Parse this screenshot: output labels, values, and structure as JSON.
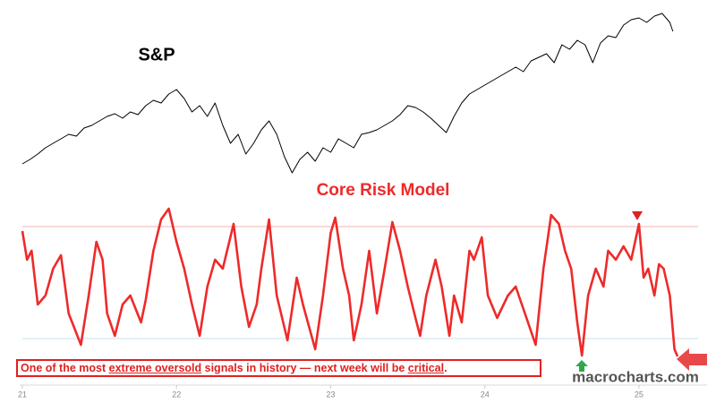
{
  "chart_data": [
    {
      "type": "line",
      "title": "S&P",
      "color": "#000000",
      "x": [
        21.0,
        21.05,
        21.1,
        21.15,
        21.2,
        21.25,
        21.3,
        21.35,
        21.4,
        21.45,
        21.5,
        21.55,
        21.6,
        21.65,
        21.7,
        21.75,
        21.8,
        21.85,
        21.9,
        21.95,
        22.0,
        22.05,
        22.1,
        22.15,
        22.2,
        22.25,
        22.3,
        22.35,
        22.4,
        22.45,
        22.5,
        22.55,
        22.6,
        22.65,
        22.7,
        22.75,
        22.8,
        22.85,
        22.9,
        22.95,
        23.0,
        23.05,
        23.1,
        23.15,
        23.2,
        23.25,
        23.3,
        23.4,
        23.45,
        23.5,
        23.55,
        23.6,
        23.65,
        23.7,
        23.75,
        23.8,
        23.85,
        23.9,
        23.95,
        24.0,
        24.1,
        24.2,
        24.25,
        24.3,
        24.4,
        24.45,
        24.5,
        24.55,
        24.6,
        24.65,
        24.7,
        24.75,
        24.8,
        24.85,
        24.9,
        24.95,
        25.0,
        25.05,
        25.1,
        25.15,
        25.2,
        25.22
      ],
      "values": [
        17,
        22,
        28,
        35,
        40,
        45,
        50,
        48,
        57,
        60,
        65,
        70,
        73,
        68,
        75,
        72,
        82,
        88,
        85,
        95,
        100,
        90,
        75,
        82,
        70,
        85,
        60,
        40,
        50,
        28,
        40,
        55,
        65,
        50,
        25,
        7,
        22,
        30,
        20,
        35,
        30,
        45,
        40,
        35,
        50,
        52,
        55,
        65,
        72,
        82,
        80,
        75,
        68,
        60,
        52,
        70,
        85,
        95,
        100,
        105,
        115,
        125,
        120,
        132,
        140,
        130,
        150,
        145,
        155,
        150,
        130,
        152,
        160,
        158,
        172,
        178,
        180,
        175,
        182,
        185,
        175,
        165
      ],
      "xlim": [
        21,
        25.43
      ],
      "ylim": [
        0,
        190
      ]
    },
    {
      "type": "line",
      "title": "Core Risk Model",
      "color": "#ee2a2a",
      "x": [
        21.0,
        21.03,
        21.06,
        21.1,
        21.15,
        21.2,
        21.25,
        21.3,
        21.38,
        21.43,
        21.48,
        21.52,
        21.55,
        21.6,
        21.65,
        21.7,
        21.77,
        21.8,
        21.85,
        21.9,
        21.95,
        22.0,
        22.05,
        22.1,
        22.15,
        22.2,
        22.25,
        22.3,
        22.37,
        22.42,
        22.47,
        22.52,
        22.55,
        22.6,
        22.65,
        22.72,
        22.78,
        22.82,
        22.9,
        22.95,
        23.0,
        23.03,
        23.08,
        23.12,
        23.15,
        23.2,
        23.25,
        23.3,
        23.35,
        23.4,
        23.45,
        23.5,
        23.55,
        23.58,
        23.62,
        23.68,
        23.72,
        23.77,
        23.8,
        23.85,
        23.9,
        23.93,
        23.98,
        24.02,
        24.08,
        24.15,
        24.2,
        24.25,
        24.33,
        24.38,
        24.43,
        24.48,
        24.52,
        24.56,
        24.6,
        24.63,
        24.67,
        24.72,
        24.77,
        24.8,
        24.85,
        24.9,
        24.95,
        25.0,
        25.03,
        25.06,
        25.1,
        25.13,
        25.16,
        25.2,
        25.23,
        25.25
      ],
      "values": [
        162,
        130,
        140,
        80,
        90,
        120,
        135,
        70,
        35,
        90,
        150,
        130,
        70,
        45,
        80,
        90,
        60,
        85,
        140,
        175,
        187,
        150,
        120,
        80,
        45,
        100,
        130,
        120,
        170,
        100,
        55,
        80,
        120,
        175,
        90,
        40,
        110,
        80,
        30,
        90,
        160,
        177,
        120,
        90,
        40,
        80,
        140,
        70,
        120,
        172,
        140,
        100,
        65,
        45,
        90,
        130,
        100,
        45,
        90,
        60,
        140,
        130,
        155,
        90,
        65,
        90,
        100,
        75,
        35,
        120,
        180,
        170,
        140,
        120,
        60,
        23,
        90,
        120,
        100,
        140,
        130,
        145,
        130,
        170,
        110,
        120,
        90,
        125,
        120,
        90,
        30,
        22
      ],
      "xlim": [
        21,
        25.43
      ],
      "ylim": [
        0,
        200
      ],
      "reference_lines": [
        {
          "value": 167,
          "color": "#f6b3b3"
        },
        {
          "value": 42,
          "color": "#c5e3ea"
        }
      ],
      "xticks": [
        21,
        22,
        23,
        24,
        25
      ],
      "annotation": [
        "One of the most ",
        "extreme oversold",
        " signals in history — next week will be ",
        "critical",
        "."
      ],
      "watermark": "macrocharts.com"
    }
  ]
}
